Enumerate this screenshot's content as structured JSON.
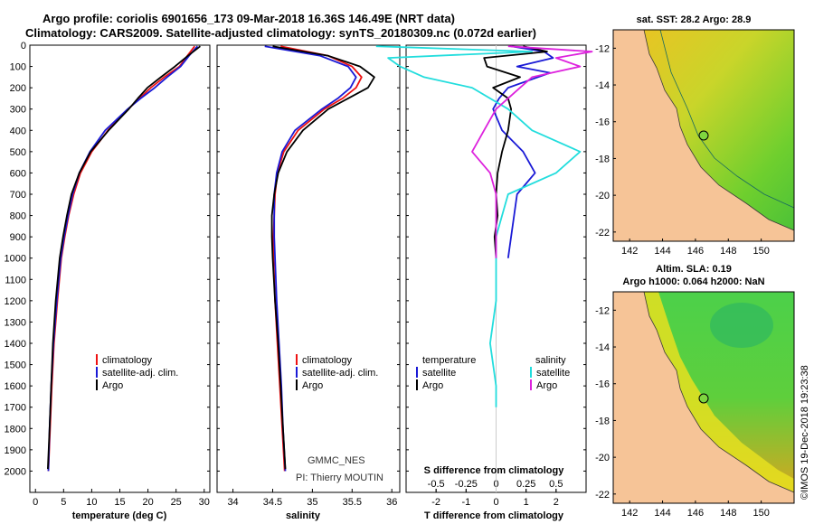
{
  "header": {
    "line1": "Argo profile: coriolis 6901656_173 09-Mar-2018 16.36S 146.49E (NRT data)",
    "line2": "Climatology: CARS2009. Satellite-adjusted climatology: synTS_20180309.nc (0.072d earlier)"
  },
  "colors": {
    "climatology": "#ee1111",
    "satellite": "#1a1ad6",
    "argo": "#000000",
    "sat_salinity": "#22dddd",
    "argo_salinity": "#dd22dd",
    "land": "#f6c497"
  },
  "chart_data": [
    {
      "type": "line",
      "id": "temperature",
      "xlabel": "temperature (deg C)",
      "ylabel": "",
      "xlim": [
        -1,
        31
      ],
      "ylim": [
        2100,
        0
      ],
      "xticks": [
        "0",
        "5",
        "10",
        "15",
        "20",
        "25",
        "30"
      ],
      "yticks": [
        "0",
        "100",
        "200",
        "300",
        "400",
        "500",
        "600",
        "700",
        "800",
        "900",
        "1000",
        "1100",
        "1200",
        "1300",
        "1400",
        "1500",
        "1600",
        "1700",
        "1800",
        "1900",
        "2000"
      ],
      "legend": [
        "climatology",
        "satellite-adj. clim.",
        "Argo"
      ],
      "series": [
        {
          "name": "climatology",
          "depth": [
            5,
            50,
            100,
            150,
            200,
            250,
            300,
            400,
            500,
            600,
            700,
            800,
            900,
            1000,
            1200,
            1400,
            1600,
            1800,
            2000
          ],
          "values": [
            28.3,
            27.0,
            25.6,
            22.9,
            20.5,
            18.5,
            16.5,
            12.9,
            10.0,
            8.0,
            6.8,
            5.9,
            5.2,
            4.6,
            3.9,
            3.3,
            2.9,
            2.6,
            2.3
          ]
        },
        {
          "name": "satellite-adj. clim.",
          "depth": [
            5,
            50,
            100,
            150,
            200,
            250,
            300,
            400,
            500,
            600,
            700,
            800,
            900,
            1000,
            1200,
            1400,
            1600,
            1800,
            2000
          ],
          "values": [
            28.8,
            27.3,
            25.8,
            23.4,
            21.2,
            18.7,
            16.4,
            12.4,
            9.7,
            7.8,
            6.6,
            5.8,
            5.1,
            4.5,
            3.8,
            3.2,
            2.8,
            2.5,
            2.3
          ]
        },
        {
          "name": "Argo",
          "depth": [
            5,
            50,
            100,
            150,
            200,
            250,
            300,
            400,
            500,
            600,
            700,
            800,
            900,
            1000,
            1200,
            1400,
            1600,
            1800,
            1990
          ],
          "values": [
            29.3,
            27.1,
            24.8,
            22.3,
            19.9,
            18.2,
            16.6,
            13.0,
            9.8,
            7.8,
            6.4,
            5.6,
            4.9,
            4.3,
            3.6,
            3.1,
            2.8,
            2.5,
            2.2
          ]
        }
      ]
    },
    {
      "type": "line",
      "id": "salinity",
      "xlabel": "salinity",
      "ylabel": "",
      "xlim": [
        33.8,
        36.1
      ],
      "ylim": [
        2100,
        0
      ],
      "xticks": [
        "34",
        "34.5",
        "35",
        "35.5",
        "36"
      ],
      "legend": [
        "climatology",
        "satellite-adj. clim.",
        "Argo"
      ],
      "annotations": [
        "GMMC_NES",
        "PI: Thierry MOUTIN"
      ],
      "series": [
        {
          "name": "climatology",
          "depth": [
            5,
            50,
            100,
            150,
            200,
            250,
            300,
            400,
            500,
            600,
            700,
            800,
            900,
            1000,
            1200,
            1400,
            1600,
            1800,
            2000
          ],
          "values": [
            34.6,
            35.2,
            35.5,
            35.62,
            35.55,
            35.38,
            35.15,
            34.82,
            34.64,
            34.56,
            34.53,
            34.52,
            34.51,
            34.51,
            34.53,
            34.56,
            34.59,
            34.62,
            34.65
          ]
        },
        {
          "name": "satellite-adj. clim.",
          "depth": [
            5,
            50,
            100,
            150,
            200,
            250,
            300,
            400,
            500,
            600,
            700,
            800,
            900,
            1000,
            1200,
            1400,
            1600,
            1800,
            2000
          ],
          "values": [
            34.4,
            35.1,
            35.45,
            35.55,
            35.48,
            35.32,
            35.12,
            34.78,
            34.62,
            34.55,
            34.52,
            34.52,
            34.52,
            34.53,
            34.55,
            34.58,
            34.61,
            34.63,
            34.66
          ]
        },
        {
          "name": "Argo",
          "depth": [
            5,
            50,
            100,
            150,
            200,
            250,
            300,
            400,
            500,
            600,
            700,
            800,
            900,
            1000,
            1200,
            1400,
            1600,
            1800,
            1990
          ],
          "values": [
            34.5,
            35.2,
            35.6,
            35.78,
            35.7,
            35.45,
            35.2,
            34.88,
            34.68,
            34.57,
            34.52,
            34.49,
            34.49,
            34.5,
            34.53,
            34.57,
            34.6,
            34.63,
            34.66
          ]
        }
      ]
    },
    {
      "type": "line",
      "id": "difference",
      "xlabel": "T difference from climatology",
      "xlabel2": "S difference from climatology",
      "xlim": [
        -3,
        3
      ],
      "ylim": [
        2100,
        0
      ],
      "xticks": [
        "-2",
        "-1",
        "0",
        "1",
        "2"
      ],
      "xticks_s": [
        "-0.5",
        "-0.25",
        "0",
        "0.25",
        "0.5"
      ],
      "legend_t": {
        "title": "temperature",
        "items": [
          "satellite",
          "Argo"
        ]
      },
      "legend_s": {
        "title": "salinity",
        "items": [
          "satellite",
          "Argo"
        ]
      },
      "series": [
        {
          "name": "temperature satellite",
          "depth": [
            5,
            30,
            60,
            100,
            130,
            160,
            200,
            250,
            300,
            400,
            500,
            600,
            700,
            800,
            900,
            1000
          ],
          "values": [
            0.5,
            1.6,
            1.9,
            0.7,
            1.8,
            1.2,
            0.4,
            0.1,
            -0.1,
            0.2,
            0.9,
            1.3,
            0.7,
            0.6,
            0.5,
            0.4
          ]
        },
        {
          "name": "temperature Argo",
          "depth": [
            5,
            30,
            60,
            100,
            150,
            200,
            250,
            300,
            400,
            500,
            600,
            700,
            800,
            900,
            1000
          ],
          "values": [
            0.9,
            1.7,
            -0.4,
            -0.3,
            0.8,
            -0.1,
            0.4,
            0.5,
            0.4,
            0.2,
            0.05,
            0.0,
            0.05,
            -0.05,
            0.0
          ]
        },
        {
          "name": "salinity satellite",
          "depth": [
            5,
            30,
            60,
            100,
            150,
            200,
            300,
            400,
            500,
            600,
            700,
            800,
            900,
            1000,
            1200,
            1400,
            1600,
            1700
          ],
          "values": [
            -1.0,
            0.3,
            -0.9,
            -0.8,
            -0.6,
            -0.2,
            0.1,
            0.3,
            0.7,
            0.5,
            0.1,
            0.05,
            0.0,
            0.0,
            0.0,
            -0.05,
            0.0,
            0.0
          ]
        },
        {
          "name": "salinity Argo",
          "depth": [
            5,
            30,
            60,
            100,
            150,
            200,
            300,
            400,
            500,
            600,
            700,
            800,
            900,
            1000
          ],
          "values": [
            0.1,
            0.8,
            0.5,
            0.7,
            0.3,
            0.2,
            0.0,
            -0.1,
            -0.2,
            -0.05,
            0.0,
            0.0,
            0.0,
            0.0
          ]
        }
      ]
    }
  ],
  "maps": {
    "sst": {
      "title": "sat. SST: 28.2 Argo: 28.9",
      "lon_ticks": [
        "142",
        "144",
        "146",
        "148",
        "150"
      ],
      "lat_ticks": [
        "-12",
        "-14",
        "-16",
        "-18",
        "-20",
        "-22"
      ]
    },
    "sla": {
      "title1": "Altim. SLA: 0.19",
      "title2": "Argo h1000: 0.064 h2000: NaN",
      "lon_ticks": [
        "142",
        "144",
        "146",
        "148",
        "150"
      ],
      "lat_ticks": [
        "-12",
        "-14",
        "-16",
        "-18",
        "-20",
        "-22"
      ]
    }
  },
  "credit": "©IMOS 19-Dec-2018 19:23:38"
}
